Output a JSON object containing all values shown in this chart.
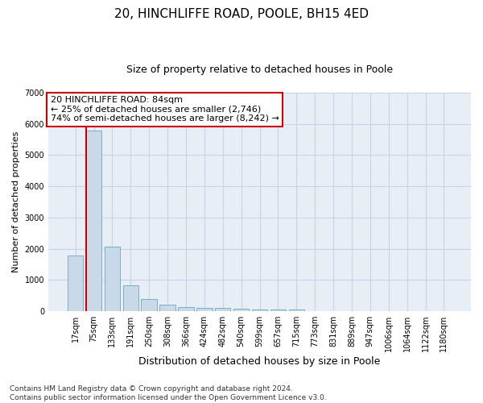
{
  "title_line1": "20, HINCHLIFFE ROAD, POOLE, BH15 4ED",
  "title_line2": "Size of property relative to detached houses in Poole",
  "xlabel": "Distribution of detached houses by size in Poole",
  "ylabel": "Number of detached properties",
  "categories": [
    "17sqm",
    "75sqm",
    "133sqm",
    "191sqm",
    "250sqm",
    "308sqm",
    "366sqm",
    "424sqm",
    "482sqm",
    "540sqm",
    "599sqm",
    "657sqm",
    "715sqm",
    "773sqm",
    "831sqm",
    "889sqm",
    "947sqm",
    "1006sqm",
    "1064sqm",
    "1122sqm",
    "1180sqm"
  ],
  "values": [
    1780,
    5780,
    2060,
    840,
    380,
    220,
    130,
    110,
    100,
    70,
    60,
    50,
    50,
    0,
    0,
    0,
    0,
    0,
    0,
    0,
    0
  ],
  "bar_color": "#c9d9e8",
  "bar_edge_color": "#7aafc8",
  "vline_color": "#cc0000",
  "vline_x_index": 1,
  "annotation_text": "20 HINCHLIFFE ROAD: 84sqm\n← 25% of detached houses are smaller (2,746)\n74% of semi-detached houses are larger (8,242) →",
  "annotation_box_facecolor": "white",
  "annotation_box_edgecolor": "#cc0000",
  "ylim": [
    0,
    7000
  ],
  "yticks": [
    0,
    1000,
    2000,
    3000,
    4000,
    5000,
    6000,
    7000
  ],
  "footnote_line1": "Contains HM Land Registry data © Crown copyright and database right 2024.",
  "footnote_line2": "Contains public sector information licensed under the Open Government Licence v3.0.",
  "grid_color": "#c8d4e4",
  "bg_color": "#e8eef6",
  "title_fontsize": 11,
  "subtitle_fontsize": 9,
  "xlabel_fontsize": 9,
  "ylabel_fontsize": 8,
  "tick_fontsize": 7,
  "annotation_fontsize": 8,
  "footnote_fontsize": 6.5
}
